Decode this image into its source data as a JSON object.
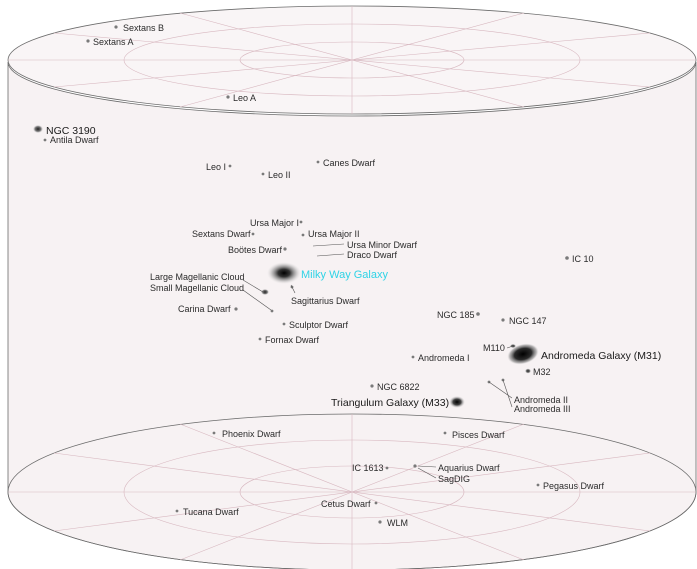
{
  "colors": {
    "cylinder_fill": "#f7f2f3",
    "rim_stroke": "#6b6b6b",
    "grid_stroke": "#d8b8c0",
    "milky_way_label": "#2fd3e6",
    "galaxy_dark": "#1e1e1e"
  },
  "galaxies": {
    "sextans_b": "Sextans B",
    "sextans_a": "Sextans A",
    "leo_a": "Leo A",
    "ngc_3190": "NGC 3190",
    "antila_dwarf": "Antila Dwarf",
    "canes_dwarf": "Canes Dwarf",
    "leo_i": "Leo I",
    "leo_ii": "Leo II",
    "ursa_major_i": "Ursa Major I",
    "sextans_dwarf": "Sextans Dwarf",
    "ursa_major_ii": "Ursa Major II",
    "bootes_dwarf": "Boötes Dwarf",
    "ursa_minor_dwarf": "Ursa Minor Dwarf",
    "draco_dwarf": "Draco Dwarf",
    "ic_10": "IC 10",
    "lmc": "Large Magellanic Cloud",
    "smc": "Small Magellanic Cloud",
    "milky_way": "Milky Way Galaxy",
    "sagittarius_dwarf": "Sagittarius Dwarf",
    "carina_dwarf": "Carina Dwarf",
    "ngc_185": "NGC 185",
    "ngc_147": "NGC 147",
    "sculptor_dwarf": "Sculptor Dwarf",
    "fornax_dwarf": "Fornax Dwarf",
    "m110": "M110",
    "andromeda": "Andromeda Galaxy (M31)",
    "andromeda_i": "Andromeda I",
    "m32": "M32",
    "ngc_6822": "NGC 6822",
    "andromeda_ii": "Andromeda II",
    "andromeda_iii": "Andromeda III",
    "triangulum": "Triangulum Galaxy (M33)",
    "phoenix_dwarf": "Phoenix Dwarf",
    "pisces_dwarf": "Pisces Dwarf",
    "ic_1613": "IC 1613",
    "aquarius_dwarf": "Aquarius Dwarf",
    "sagdig": "SagDIG",
    "pegasus_dwarf": "Pegasus Dwarf",
    "tucana_dwarf": "Tucana Dwarf",
    "cetus_dwarf": "Cetus Dwarf",
    "wlm": "WLM"
  }
}
